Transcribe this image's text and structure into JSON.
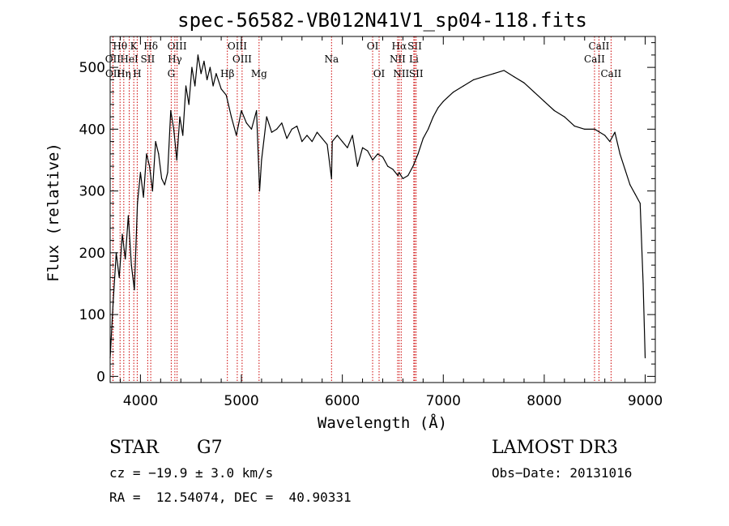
{
  "chart_data": {
    "type": "line",
    "title": "spec-56582-VB012N41V1_sp04-118.fits",
    "xlabel": "Wavelength (Å)",
    "ylabel": "Flux (relative)",
    "xlim": [
      3700,
      9100
    ],
    "ylim": [
      -10,
      550
    ],
    "xticks": [
      4000,
      5000,
      6000,
      7000,
      8000,
      9000
    ],
    "yticks": [
      0,
      100,
      200,
      300,
      400,
      500
    ],
    "grid": false,
    "series": [
      {
        "color": "#000000",
        "x": [
          3700,
          3730,
          3760,
          3790,
          3820,
          3850,
          3880,
          3910,
          3940,
          3970,
          4000,
          4030,
          4060,
          4090,
          4120,
          4150,
          4180,
          4210,
          4240,
          4270,
          4300,
          4330,
          4360,
          4390,
          4420,
          4450,
          4480,
          4510,
          4540,
          4570,
          4600,
          4630,
          4660,
          4690,
          4720,
          4750,
          4800,
          4850,
          4900,
          4950,
          5000,
          5050,
          5100,
          5150,
          5180,
          5200,
          5250,
          5300,
          5350,
          5400,
          5450,
          5500,
          5550,
          5600,
          5650,
          5700,
          5750,
          5800,
          5850,
          5893,
          5900,
          5950,
          6000,
          6050,
          6100,
          6150,
          6200,
          6250,
          6300,
          6350,
          6400,
          6450,
          6500,
          6550,
          6563,
          6600,
          6650,
          6700,
          6750,
          6800,
          6850,
          6900,
          6950,
          7000,
          7100,
          7200,
          7300,
          7400,
          7500,
          7600,
          7700,
          7800,
          7900,
          8000,
          8100,
          8200,
          8300,
          8400,
          8500,
          8600,
          8650,
          8700,
          8750,
          8800,
          8850,
          8900,
          8950,
          8980,
          9000
        ],
        "y": [
          30,
          120,
          200,
          160,
          230,
          190,
          260,
          180,
          140,
          280,
          330,
          290,
          360,
          340,
          300,
          380,
          360,
          320,
          310,
          330,
          430,
          400,
          350,
          420,
          390,
          470,
          440,
          500,
          470,
          520,
          490,
          510,
          480,
          500,
          470,
          490,
          465,
          455,
          420,
          390,
          430,
          410,
          400,
          430,
          300,
          350,
          420,
          395,
          400,
          410,
          385,
          400,
          405,
          380,
          390,
          380,
          395,
          385,
          375,
          320,
          380,
          390,
          380,
          370,
          390,
          340,
          370,
          365,
          350,
          360,
          355,
          340,
          335,
          325,
          330,
          320,
          325,
          340,
          360,
          385,
          400,
          420,
          435,
          445,
          460,
          470,
          480,
          485,
          490,
          495,
          485,
          475,
          460,
          445,
          430,
          420,
          405,
          400,
          400,
          390,
          380,
          395,
          360,
          335,
          310,
          295,
          280,
          150,
          30
        ]
      }
    ],
    "lines": [
      {
        "label": "Hθ",
        "x": 3798,
        "row": 1
      },
      {
        "label": "K",
        "x": 3934,
        "row": 1
      },
      {
        "label": "Hδ",
        "x": 4102,
        "row": 1
      },
      {
        "label": "OIII",
        "x": 4363,
        "row": 1
      },
      {
        "label": "OIII",
        "x": 4959,
        "row": 1
      },
      {
        "label": "OI",
        "x": 6300,
        "row": 1
      },
      {
        "label": "Hα",
        "x": 6563,
        "row": 1
      },
      {
        "label": "SII",
        "x": 6717,
        "row": 1
      },
      {
        "label": "CaII",
        "x": 8542,
        "row": 1
      },
      {
        "label": "OII",
        "x": 3727,
        "row": 2
      },
      {
        "label": "HeI",
        "x": 3889,
        "row": 2
      },
      {
        "label": "SII",
        "x": 4072,
        "row": 2
      },
      {
        "label": "Hγ",
        "x": 4341,
        "row": 2
      },
      {
        "label": "OIII",
        "x": 5007,
        "row": 2
      },
      {
        "label": "Na",
        "x": 5893,
        "row": 2
      },
      {
        "label": "NII",
        "x": 6548,
        "row": 2
      },
      {
        "label": "Li",
        "x": 6708,
        "row": 2
      },
      {
        "label": "CaII",
        "x": 8498,
        "row": 2
      },
      {
        "label": "OII",
        "x": 3729,
        "row": 3
      },
      {
        "label": "Hη",
        "x": 3835,
        "row": 3
      },
      {
        "label": "H",
        "x": 3968,
        "row": 3
      },
      {
        "label": "G",
        "x": 4305,
        "row": 3
      },
      {
        "label": "Hβ",
        "x": 4861,
        "row": 3
      },
      {
        "label": "Mg",
        "x": 5175,
        "row": 3
      },
      {
        "label": "OI",
        "x": 6364,
        "row": 3
      },
      {
        "label": "NII",
        "x": 6583,
        "row": 3
      },
      {
        "label": "SII",
        "x": 6731,
        "row": 3
      },
      {
        "label": "CaII",
        "x": 8662,
        "row": 3
      }
    ],
    "line_color": "#cc0000"
  },
  "info": {
    "class": "STAR",
    "subclass": "G7",
    "survey": "LAMOST DR3",
    "cz": "cz = −19.9 ± 3.0 km/s",
    "obs_date": "Obs−Date: 20131016",
    "coords": "RA =  12.54074, DEC =  40.90331"
  }
}
